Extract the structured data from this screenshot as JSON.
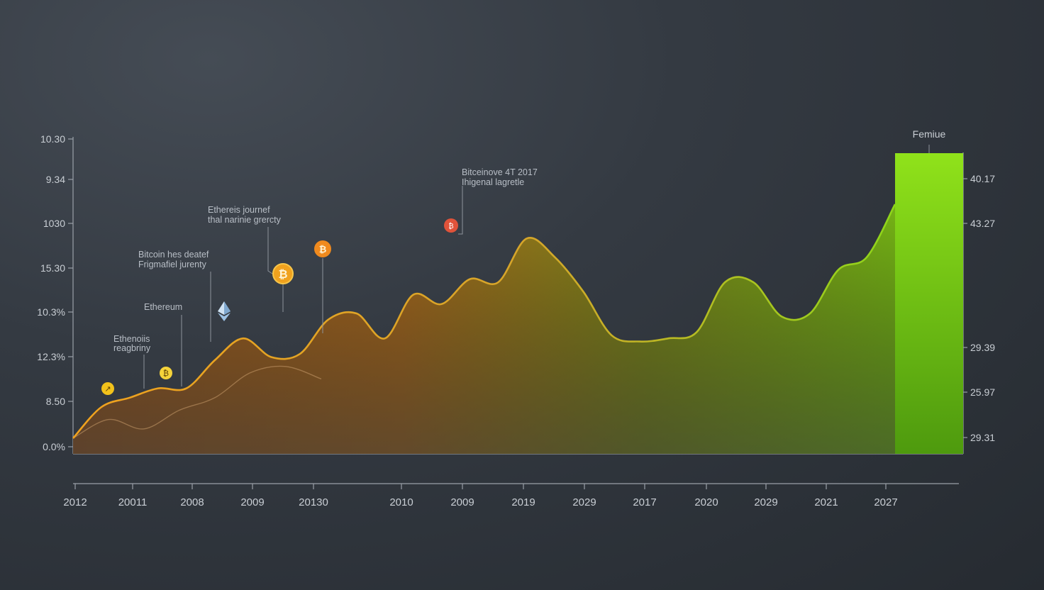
{
  "chart_data": {
    "type": "area",
    "left_y_ticks": [
      "10.30",
      "9.34",
      "1030",
      "15.30",
      "10.3%",
      "12.3%",
      "8.50",
      "0.0%"
    ],
    "right_y_ticks": [
      "40.17",
      "43.27",
      "29.39",
      "25.97",
      "29.31"
    ],
    "x_ticks": [
      "2012",
      "20011",
      "2008",
      "2009",
      "20130",
      "2010",
      "2009",
      "2019",
      "2029",
      "2017",
      "2020",
      "2029",
      "2021",
      "2027"
    ],
    "bar_label": "Femiue",
    "annotations": [
      {
        "id": "ann1",
        "lines": [
          "Ethenoiis",
          "reagbriny"
        ],
        "icon": "coin-icon",
        "icon_color": "#f2c21b"
      },
      {
        "id": "ann2",
        "lines": [
          "Ethereum"
        ],
        "icon": "coin-icon",
        "icon_color": "#f5d33a"
      },
      {
        "id": "ann3",
        "lines": [
          "Bitcoin hes deatef",
          "Frigmafiel jurenty"
        ],
        "icon": "ethereum-icon",
        "icon_color": "#9ec3e6"
      },
      {
        "id": "ann4",
        "lines": [
          "Ethereis journef",
          "thal narinie grercty"
        ],
        "icon": "bitcoin-icon",
        "icon_color": "#f0a21e"
      },
      {
        "id": "ann5",
        "lines": [],
        "icon": "bitcoin-icon",
        "icon_color": "#f08a1e"
      },
      {
        "id": "ann6",
        "lines": [
          "Bitceinove 4T 2017",
          "Ihigenal lagretle"
        ],
        "icon": "coin-icon",
        "icon_color": "#e0533a"
      }
    ],
    "main_series": [
      0.05,
      0.15,
      0.18,
      0.21,
      0.21,
      0.3,
      0.37,
      0.31,
      0.32,
      0.43,
      0.45,
      0.37,
      0.51,
      0.48,
      0.56,
      0.55,
      0.69,
      0.63,
      0.52,
      0.38,
      0.36,
      0.37,
      0.39,
      0.55,
      0.55,
      0.44,
      0.45,
      0.59,
      0.63,
      0.8
    ],
    "secondary_series": [
      0.05,
      0.11,
      0.08,
      0.14,
      0.18,
      0.26,
      0.28,
      0.24
    ],
    "bar_value": 1.0,
    "colors": {
      "start": "#f0a21e",
      "end": "#8ed61a",
      "secondary": "#c79a6a",
      "bar_top": "#90e21a",
      "bar_bottom": "#4e9a0e"
    }
  }
}
